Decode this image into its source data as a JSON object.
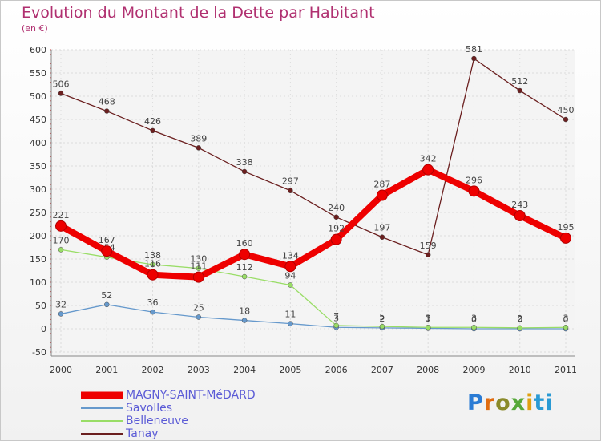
{
  "chart_data": {
    "type": "line",
    "title": "Evolution du Montant de la Dette par Habitant",
    "subtitle": "(en €)",
    "xlabel": "",
    "ylabel": "",
    "ylim": [
      -50,
      600
    ],
    "yticks": [
      -50,
      0,
      50,
      100,
      150,
      200,
      250,
      300,
      350,
      400,
      450,
      500,
      550,
      600
    ],
    "categories": [
      "2000",
      "2001",
      "2002",
      "2003",
      "2004",
      "2005",
      "2006",
      "2007",
      "2008",
      "2009",
      "2010",
      "2011"
    ],
    "grid": true,
    "legend_position": "bottom-left",
    "series": [
      {
        "name": "Tanay",
        "color": "#6b1f1f",
        "values": [
          506,
          468,
          426,
          389,
          338,
          297,
          240,
          197,
          159,
          581,
          512,
          450
        ]
      },
      {
        "name": "Savolles",
        "color": "#6699cc",
        "values": [
          32,
          52,
          36,
          25,
          18,
          11,
          3,
          2,
          1,
          0,
          0,
          0
        ]
      },
      {
        "name": "Belleneuve",
        "color": "#99dd66",
        "values": [
          170,
          154,
          138,
          130,
          112,
          94,
          7,
          5,
          3,
          3,
          2,
          3
        ]
      },
      {
        "name": "MAGNY-SAINT-MéDARD",
        "color": "#ee0000",
        "values": [
          221,
          167,
          116,
          111,
          160,
          134,
          192,
          287,
          342,
          296,
          243,
          195
        ]
      }
    ]
  },
  "legend": {
    "items": [
      {
        "label": "MAGNY-SAINT-MéDARD",
        "color": "#ee0000",
        "width": 9
      },
      {
        "label": "Savolles",
        "color": "#6699cc",
        "width": 2
      },
      {
        "label": "Belleneuve",
        "color": "#99dd66",
        "width": 2
      },
      {
        "label": "Tanay",
        "color": "#6b1f1f",
        "width": 2
      }
    ]
  },
  "logo": {
    "l1": "P",
    "l2": "r",
    "l3": "o",
    "l4": "x",
    "l5": "i",
    "l6": "ti"
  }
}
